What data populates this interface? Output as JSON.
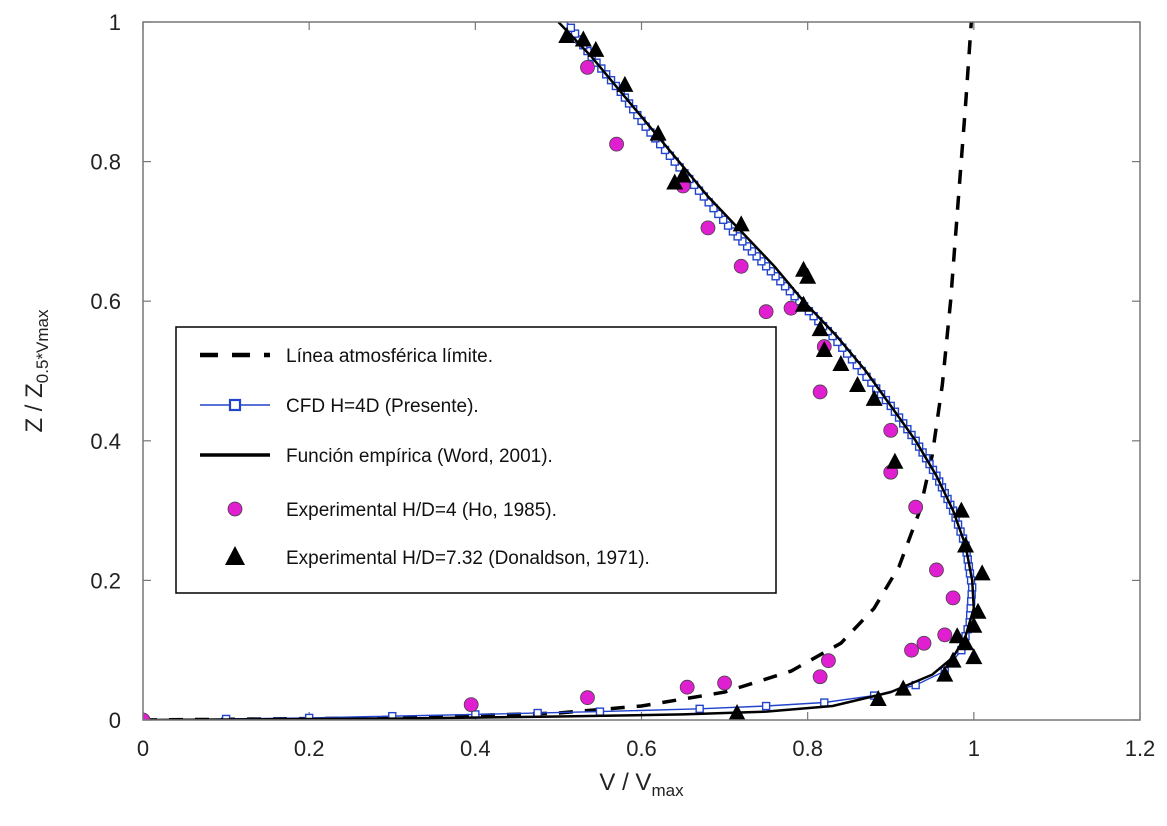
{
  "chart_data": {
    "type": "line",
    "xlabel": "V / V",
    "xlabel_sub": "max",
    "ylabel": "Z / Z",
    "ylabel_sub": "0.5*Vmax",
    "xlim": [
      0,
      1.2
    ],
    "ylim": [
      0,
      1
    ],
    "x_ticks": [
      "0",
      "0.2",
      "0.4",
      "0.6",
      "0.8",
      "1",
      "1.2"
    ],
    "y_ticks": [
      "0",
      "0.2",
      "0.4",
      "0.6",
      "0.8",
      "1"
    ],
    "legend_position": "center-left",
    "series": [
      {
        "name": "Línea atmosférica límite.",
        "style": "dashed-line",
        "color": "#000000",
        "points": [
          [
            0.0,
            0.0
          ],
          [
            0.3,
            0.003
          ],
          [
            0.5,
            0.01
          ],
          [
            0.6,
            0.02
          ],
          [
            0.7,
            0.04
          ],
          [
            0.78,
            0.07
          ],
          [
            0.84,
            0.11
          ],
          [
            0.88,
            0.16
          ],
          [
            0.91,
            0.22
          ],
          [
            0.935,
            0.3
          ],
          [
            0.95,
            0.38
          ],
          [
            0.962,
            0.48
          ],
          [
            0.972,
            0.6
          ],
          [
            0.981,
            0.74
          ],
          [
            0.99,
            0.88
          ],
          [
            0.997,
            1.0
          ]
        ]
      },
      {
        "name": "CFD H=4D (Presente).",
        "style": "line-square-markers",
        "color": "#2244cc",
        "points": [
          [
            0.0,
            0.0
          ],
          [
            0.2,
            0.003
          ],
          [
            0.4,
            0.008
          ],
          [
            0.55,
            0.012
          ],
          [
            0.67,
            0.016
          ],
          [
            0.75,
            0.02
          ],
          [
            0.82,
            0.025
          ],
          [
            0.88,
            0.035
          ],
          [
            0.93,
            0.05
          ],
          [
            0.965,
            0.07
          ],
          [
            0.985,
            0.1
          ],
          [
            0.995,
            0.14
          ],
          [
            0.998,
            0.19
          ],
          [
            0.99,
            0.25
          ],
          [
            0.975,
            0.3
          ],
          [
            0.955,
            0.35
          ],
          [
            0.93,
            0.4
          ],
          [
            0.9,
            0.45
          ],
          [
            0.865,
            0.5
          ],
          [
            0.83,
            0.55
          ],
          [
            0.79,
            0.6
          ],
          [
            0.75,
            0.65
          ],
          [
            0.71,
            0.7
          ],
          [
            0.675,
            0.75
          ],
          [
            0.64,
            0.8
          ],
          [
            0.605,
            0.85
          ],
          [
            0.575,
            0.9
          ],
          [
            0.54,
            0.95
          ],
          [
            0.51,
            1.0
          ]
        ]
      },
      {
        "name": "Función empírica (Word, 2001).",
        "style": "solid-line",
        "color": "#000000",
        "points": [
          [
            0.0,
            0.0
          ],
          [
            0.3,
            0.002
          ],
          [
            0.5,
            0.005
          ],
          [
            0.65,
            0.008
          ],
          [
            0.75,
            0.012
          ],
          [
            0.83,
            0.02
          ],
          [
            0.9,
            0.04
          ],
          [
            0.95,
            0.065
          ],
          [
            0.975,
            0.09
          ],
          [
            0.99,
            0.12
          ],
          [
            1.0,
            0.16
          ],
          [
            0.998,
            0.2
          ],
          [
            0.99,
            0.25
          ],
          [
            0.975,
            0.3
          ],
          [
            0.955,
            0.35
          ],
          [
            0.93,
            0.4
          ],
          [
            0.9,
            0.45
          ],
          [
            0.87,
            0.5
          ],
          [
            0.835,
            0.55
          ],
          [
            0.795,
            0.6
          ],
          [
            0.76,
            0.65
          ],
          [
            0.72,
            0.7
          ],
          [
            0.68,
            0.75
          ],
          [
            0.645,
            0.8
          ],
          [
            0.61,
            0.85
          ],
          [
            0.575,
            0.9
          ],
          [
            0.54,
            0.95
          ],
          [
            0.5,
            1.0
          ]
        ]
      },
      {
        "name": "Experimental H/D=4 (Ho, 1985).",
        "style": "circle-markers",
        "color": "#e020d0",
        "points": [
          [
            0.0,
            0.0
          ],
          [
            0.395,
            0.022
          ],
          [
            0.535,
            0.032
          ],
          [
            0.655,
            0.047
          ],
          [
            0.7,
            0.053
          ],
          [
            0.815,
            0.062
          ],
          [
            0.825,
            0.085
          ],
          [
            0.925,
            0.1
          ],
          [
            0.94,
            0.11
          ],
          [
            0.965,
            0.122
          ],
          [
            0.975,
            0.175
          ],
          [
            0.955,
            0.215
          ],
          [
            0.93,
            0.305
          ],
          [
            0.9,
            0.355
          ],
          [
            0.9,
            0.415
          ],
          [
            0.815,
            0.47
          ],
          [
            0.82,
            0.535
          ],
          [
            0.78,
            0.59
          ],
          [
            0.75,
            0.585
          ],
          [
            0.72,
            0.65
          ],
          [
            0.68,
            0.705
          ],
          [
            0.65,
            0.765
          ],
          [
            0.57,
            0.825
          ],
          [
            0.535,
            0.935
          ]
        ]
      },
      {
        "name": "Experimental H/D=7.32 (Donaldson, 1971).",
        "style": "triangle-markers",
        "color": "#000000",
        "points": [
          [
            0.715,
            0.01
          ],
          [
            0.885,
            0.03
          ],
          [
            0.915,
            0.045
          ],
          [
            0.965,
            0.065
          ],
          [
            0.975,
            0.085
          ],
          [
            1.0,
            0.09
          ],
          [
            0.99,
            0.11
          ],
          [
            0.98,
            0.12
          ],
          [
            1.0,
            0.135
          ],
          [
            1.005,
            0.155
          ],
          [
            1.01,
            0.21
          ],
          [
            0.99,
            0.25
          ],
          [
            0.985,
            0.3
          ],
          [
            0.905,
            0.37
          ],
          [
            0.88,
            0.46
          ],
          [
            0.86,
            0.48
          ],
          [
            0.84,
            0.51
          ],
          [
            0.82,
            0.53
          ],
          [
            0.815,
            0.56
          ],
          [
            0.795,
            0.595
          ],
          [
            0.8,
            0.635
          ],
          [
            0.795,
            0.645
          ],
          [
            0.72,
            0.71
          ],
          [
            0.65,
            0.78
          ],
          [
            0.64,
            0.77
          ],
          [
            0.62,
            0.84
          ],
          [
            0.58,
            0.91
          ],
          [
            0.545,
            0.96
          ],
          [
            0.53,
            0.975
          ],
          [
            0.51,
            0.98
          ]
        ]
      }
    ]
  }
}
